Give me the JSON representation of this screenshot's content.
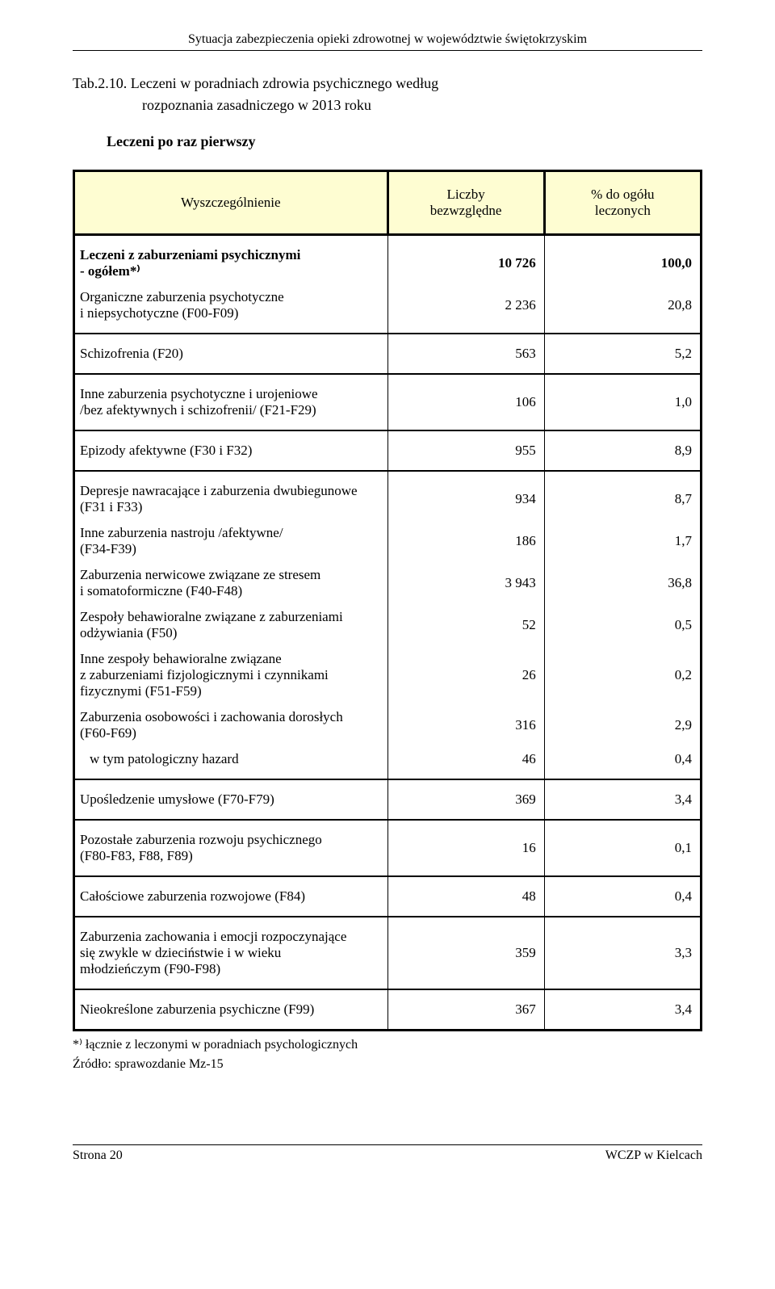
{
  "header": {
    "running_title": "Sytuacja zabezpieczenia opieki zdrowotnej w województwie świętokrzyskim"
  },
  "caption": {
    "label": "Tab.2.10.",
    "title_line1": "Leczeni w poradniach zdrowia psychicznego według",
    "title_line2": "rozpoznania zasadniczego w 2013 roku"
  },
  "subtitle": "Leczeni po raz pierwszy",
  "table_head": {
    "col1": "Wyszczególnienie",
    "col2": "Liczby\nbezwzględne",
    "col3": "% do ogółu\nleczonych"
  },
  "sections": [
    {
      "rows": [
        {
          "label": "Leczeni z zaburzeniami psychicznymi\n- ogółem*⁾",
          "v1": "10 726",
          "v2": "100,0",
          "bold": true
        },
        {
          "label": "Organiczne zaburzenia psychotyczne\ni niepsychotyczne (F00-F09)",
          "v1": "2 236",
          "v2": "20,8"
        }
      ]
    },
    {
      "rows": [
        {
          "label": "Schizofrenia (F20)",
          "v1": "563",
          "v2": "5,2"
        }
      ]
    },
    {
      "rows": [
        {
          "label": "Inne zaburzenia psychotyczne i urojeniowe\n/bez afektywnych i schizofrenii/ (F21-F29)",
          "v1": "106",
          "v2": "1,0"
        }
      ]
    },
    {
      "rows": [
        {
          "label": "Epizody afektywne (F30 i F32)",
          "v1": "955",
          "v2": "8,9"
        }
      ]
    },
    {
      "rows": [
        {
          "label": "Depresje nawracające i zaburzenia dwubiegunowe\n(F31 i F33)",
          "v1": "934",
          "v2": "8,7"
        },
        {
          "label": "Inne zaburzenia nastroju /afektywne/\n(F34-F39)",
          "v1": "186",
          "v2": "1,7"
        },
        {
          "label": "Zaburzenia nerwicowe związane ze stresem\ni somatoformiczne  (F40-F48)",
          "v1": "3 943",
          "v2": "36,8"
        },
        {
          "label": "Zespoły behawioralne związane z zaburzeniami\nodżywiania (F50)",
          "v1": "52",
          "v2": "0,5"
        },
        {
          "label": "Inne zespoły behawioralne związane\nz zaburzeniami fizjologicznymi i czynnikami\nfizycznymi (F51-F59)",
          "v1": "26",
          "v2": "0,2"
        },
        {
          "label": "Zaburzenia osobowości i zachowania dorosłych\n(F60-F69)",
          "v1": "316",
          "v2": "2,9"
        },
        {
          "label": "w tym patologiczny hazard",
          "v1": "46",
          "v2": "0,4",
          "indent": true
        }
      ]
    },
    {
      "rows": [
        {
          "label": "Upośledzenie umysłowe (F70-F79)",
          "v1": "369",
          "v2": "3,4"
        }
      ]
    },
    {
      "rows": [
        {
          "label": "Pozostałe zaburzenia rozwoju psychicznego\n(F80-F83, F88, F89)",
          "v1": "16",
          "v2": "0,1"
        }
      ]
    },
    {
      "rows": [
        {
          "label": "Całościowe zaburzenia rozwojowe (F84)",
          "v1": "48",
          "v2": "0,4"
        }
      ]
    },
    {
      "rows": [
        {
          "label": "Zaburzenia zachowania i emocji rozpoczynające\nsię zwykle w dzieciństwie i w wieku\nmłodzieńczym (F90-F98)",
          "v1": "359",
          "v2": "3,3"
        }
      ]
    },
    {
      "rows": [
        {
          "label": "Nieokreślone zaburzenia psychiczne (F99)",
          "v1": "367",
          "v2": "3,4"
        }
      ]
    }
  ],
  "footnotes": {
    "line1": "*⁾ łącznie z leczonymi w poradniach psychologicznych",
    "line2": "Źródło: sprawozdanie Mz-15"
  },
  "footer": {
    "left": "Strona 20",
    "right": "WCZP w Kielcach"
  },
  "colors": {
    "header_bg": "#fefdd2",
    "border": "#000000",
    "text": "#000000",
    "page_bg": "#ffffff"
  }
}
